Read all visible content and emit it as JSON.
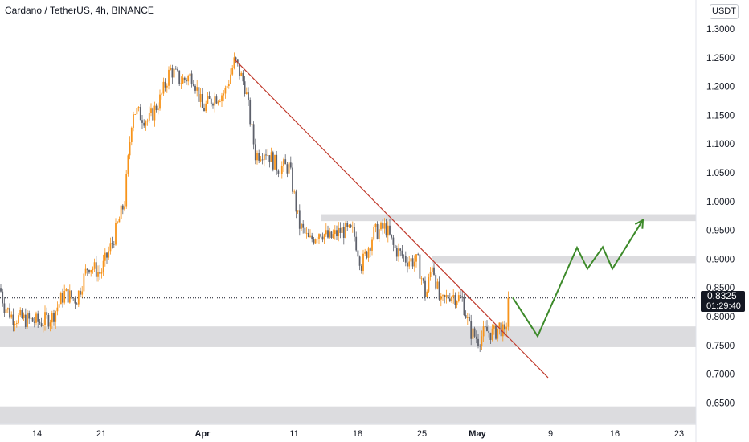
{
  "header": {
    "title": "Cardano / TetherUS, 4h, BINANCE",
    "currency": "USDT"
  },
  "price_tag": {
    "price": "0.8325",
    "countdown": "01:29:40"
  },
  "colors": {
    "up_candle": "#f7931a",
    "down_candle": "#5d606b",
    "trendline": "#c0392b",
    "projection": "#3d8a2a",
    "zone": "#dcdcdf",
    "price_tag_bg": "#131722"
  },
  "chart_data": {
    "type": "candlestick",
    "y_ticks": [
      "1.3000",
      "1.2500",
      "1.2000",
      "1.1500",
      "1.1000",
      "1.0500",
      "1.0000",
      "0.9500",
      "0.9000",
      "0.8500",
      "0.8000",
      "0.7500",
      "0.7000",
      "0.6500"
    ],
    "x_ticks": [
      "14",
      "21",
      "Apr",
      "11",
      "18",
      "25",
      "May",
      "9",
      "16",
      "23"
    ],
    "ylim": [
      0.613,
      1.328
    ],
    "last_price": 0.8325,
    "support_resistance_zones": [
      {
        "low": 0.966,
        "high": 0.978
      },
      {
        "low": 0.893,
        "high": 0.905
      },
      {
        "low": 0.747,
        "high": 0.783
      },
      {
        "low": 0.612,
        "high": 0.644
      }
    ],
    "trendline": {
      "from": {
        "x": 292,
        "price": 1.247
      },
      "to": {
        "x": 682,
        "price": 0.694
      }
    },
    "projection_path": [
      {
        "x": 638,
        "price": 0.833
      },
      {
        "x": 669,
        "price": 0.766
      },
      {
        "x": 718,
        "price": 0.92
      },
      {
        "x": 731,
        "price": 0.883
      },
      {
        "x": 750,
        "price": 0.921
      },
      {
        "x": 762,
        "price": 0.883
      },
      {
        "x": 800,
        "price": 0.968
      }
    ],
    "price_path_keypoints": [
      [
        0,
        0.85
      ],
      [
        5,
        0.82
      ],
      [
        15,
        0.8
      ],
      [
        30,
        0.795
      ],
      [
        50,
        0.79
      ],
      [
        65,
        0.8
      ],
      [
        80,
        0.84
      ],
      [
        95,
        0.83
      ],
      [
        110,
        0.89
      ],
      [
        125,
        0.875
      ],
      [
        140,
        0.93
      ],
      [
        155,
        1.0
      ],
      [
        165,
        1.16
      ],
      [
        185,
        1.14
      ],
      [
        200,
        1.18
      ],
      [
        212,
        1.23
      ],
      [
        225,
        1.21
      ],
      [
        240,
        1.22
      ],
      [
        252,
        1.16
      ],
      [
        265,
        1.18
      ],
      [
        280,
        1.19
      ],
      [
        292,
        1.245
      ],
      [
        305,
        1.2
      ],
      [
        318,
        1.08
      ],
      [
        330,
        1.09
      ],
      [
        345,
        1.06
      ],
      [
        360,
        1.06
      ],
      [
        372,
        0.96
      ],
      [
        385,
        0.93
      ],
      [
        398,
        0.95
      ],
      [
        410,
        0.935
      ],
      [
        425,
        0.95
      ],
      [
        440,
        0.945
      ],
      [
        450,
        0.89
      ],
      [
        465,
        0.945
      ],
      [
        480,
        0.955
      ],
      [
        490,
        0.92
      ],
      [
        505,
        0.9
      ],
      [
        520,
        0.895
      ],
      [
        530,
        0.835
      ],
      [
        538,
        0.895
      ],
      [
        548,
        0.82
      ],
      [
        560,
        0.84
      ],
      [
        575,
        0.83
      ],
      [
        585,
        0.775
      ],
      [
        595,
        0.76
      ],
      [
        605,
        0.775
      ],
      [
        615,
        0.77
      ],
      [
        622,
        0.785
      ],
      [
        628,
        0.765
      ],
      [
        634,
        0.8325
      ]
    ]
  }
}
